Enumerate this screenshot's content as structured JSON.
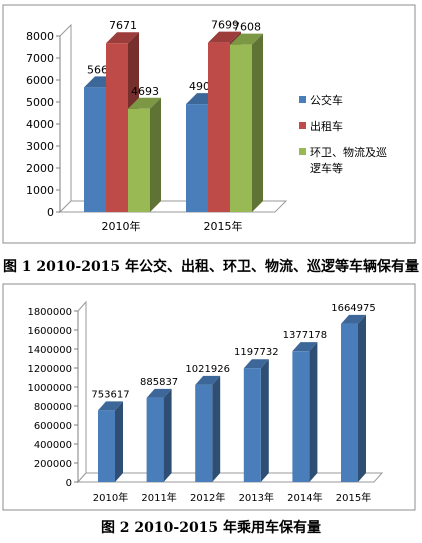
{
  "chart_data": [
    {
      "type": "bar",
      "categories": [
        "2010年",
        "2015年"
      ],
      "series": [
        {
          "name": "公交车",
          "values": [
            5666,
            4904
          ],
          "color": "#4a7ebb"
        },
        {
          "name": "出租车",
          "values": [
            7671,
            7699
          ],
          "color": "#be4b48"
        },
        {
          "name": "环卫、物流及巡逻车等",
          "values": [
            4693,
            7608
          ],
          "color": "#98b954"
        }
      ],
      "legend_lines": [
        [
          "公交车"
        ],
        [
          "出租车"
        ],
        [
          "环卫、物流及巡",
          "逻车等"
        ]
      ],
      "ylim": [
        0,
        8000
      ],
      "yticks": [
        "0",
        "1000",
        "2000",
        "3000",
        "4000",
        "5000",
        "6000",
        "7000",
        "8000"
      ],
      "legend": "right",
      "grid": false,
      "caption": "图 1 2010-2015 年公交、出租、环卫、物流、巡逻等车辆保有量"
    },
    {
      "type": "bar",
      "categories": [
        "2010年",
        "2011年",
        "2012年",
        "2013年",
        "2014年",
        "2015年"
      ],
      "series": [
        {
          "values": [
            753617,
            885837,
            1021926,
            1197732,
            1377178,
            1664975
          ],
          "color": "#4a7ebb"
        }
      ],
      "ylim": [
        0,
        1800000
      ],
      "yticks": [
        "0",
        "200000",
        "400000",
        "600000",
        "800000",
        "1000000",
        "1200000",
        "1400000",
        "1600000",
        "1800000"
      ],
      "legend": "none",
      "grid": false,
      "caption": "图 2 2010-2015 年乘用车保有量"
    }
  ]
}
